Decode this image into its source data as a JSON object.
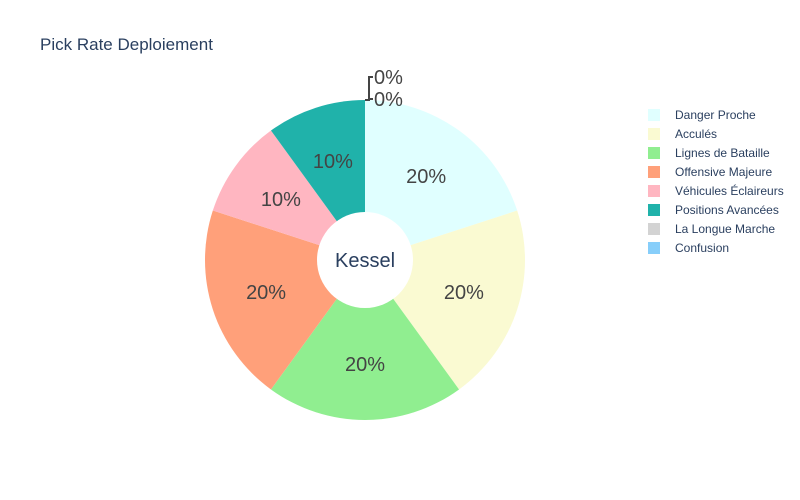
{
  "chart_data": {
    "type": "pie",
    "hole": true,
    "title": "Pick Rate Deploiement",
    "center_label": "Kessel",
    "legend_position": "right",
    "series": [
      {
        "label": "Danger Proche",
        "value": 20,
        "text": "20%",
        "color": "#e0ffff"
      },
      {
        "label": "Acculés",
        "value": 20,
        "text": "20%",
        "color": "#fafad2"
      },
      {
        "label": "Lignes de Bataille",
        "value": 20,
        "text": "20%",
        "color": "#90ee90"
      },
      {
        "label": "Offensive Majeure",
        "value": 20,
        "text": "20%",
        "color": "#ffa07a"
      },
      {
        "label": "Véhicules Éclaireurs",
        "value": 10,
        "text": "10%",
        "color": "#ffb6c1"
      },
      {
        "label": "Positions Avancées",
        "value": 10,
        "text": "10%",
        "color": "#20b2aa"
      },
      {
        "label": "La Longue Marche",
        "value": 0,
        "text": "0%",
        "color": "#d3d3d3"
      },
      {
        "label": "Confusion",
        "value": 0,
        "text": "0%",
        "color": "#87cefa"
      }
    ]
  }
}
